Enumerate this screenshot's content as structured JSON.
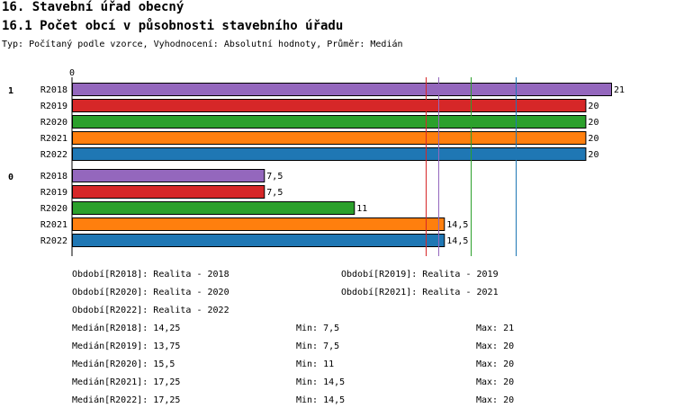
{
  "title": "16. Stavební úřad obecný",
  "subtitle": "16.1 Počet obcí v působnosti stavebního úřadu",
  "meta_line": "Typ: Počítaný podle vzorce, Vyhodnocení: Absolutní hodnoty, Průměr: Medián",
  "colors": {
    "R2018": "#9467bd",
    "R2019": "#d62728",
    "R2020": "#2ca02c",
    "R2021": "#ff7f0e",
    "R2022": "#1f77b4"
  },
  "chart_data": {
    "type": "bar",
    "orientation": "horizontal",
    "axis_zero_label": "0",
    "xlim": [
      0,
      21
    ],
    "groups": [
      {
        "label": "1",
        "bars": [
          {
            "series": "R2018",
            "value": 21,
            "label": "21"
          },
          {
            "series": "R2019",
            "value": 20,
            "label": "20"
          },
          {
            "series": "R2020",
            "value": 20,
            "label": "20"
          },
          {
            "series": "R2021",
            "value": 20,
            "label": "20"
          },
          {
            "series": "R2022",
            "value": 20,
            "label": "20"
          }
        ]
      },
      {
        "label": "0",
        "bars": [
          {
            "series": "R2018",
            "value": 7.5,
            "label": "7,5"
          },
          {
            "series": "R2019",
            "value": 7.5,
            "label": "7,5"
          },
          {
            "series": "R2020",
            "value": 11,
            "label": "11"
          },
          {
            "series": "R2021",
            "value": 14.5,
            "label": "14,5"
          },
          {
            "series": "R2022",
            "value": 14.5,
            "label": "14,5"
          }
        ]
      }
    ],
    "reference_lines": [
      {
        "series": "R2018",
        "value": 14.25
      },
      {
        "series": "R2019",
        "value": 13.75
      },
      {
        "series": "R2020",
        "value": 15.5
      },
      {
        "series": "R2021",
        "value": 17.25
      },
      {
        "series": "R2022",
        "value": 17.25
      }
    ]
  },
  "periods": [
    "Období[R2018]: Realita - 2018",
    "Období[R2019]: Realita - 2019",
    "Období[R2020]: Realita - 2020",
    "Období[R2021]: Realita - 2021",
    "Období[R2022]: Realita - 2022"
  ],
  "stats": [
    {
      "median": "Medián[R2018]: 14,25",
      "min": "Min: 7,5",
      "max": "Max: 21"
    },
    {
      "median": "Medián[R2019]: 13,75",
      "min": "Min: 7,5",
      "max": "Max: 20"
    },
    {
      "median": "Medián[R2020]: 15,5",
      "min": "Min: 11",
      "max": "Max: 20"
    },
    {
      "median": "Medián[R2021]: 17,25",
      "min": "Min: 14,5",
      "max": "Max: 20"
    },
    {
      "median": "Medián[R2022]: 17,25",
      "min": "Min: 14,5",
      "max": "Max: 20"
    }
  ]
}
